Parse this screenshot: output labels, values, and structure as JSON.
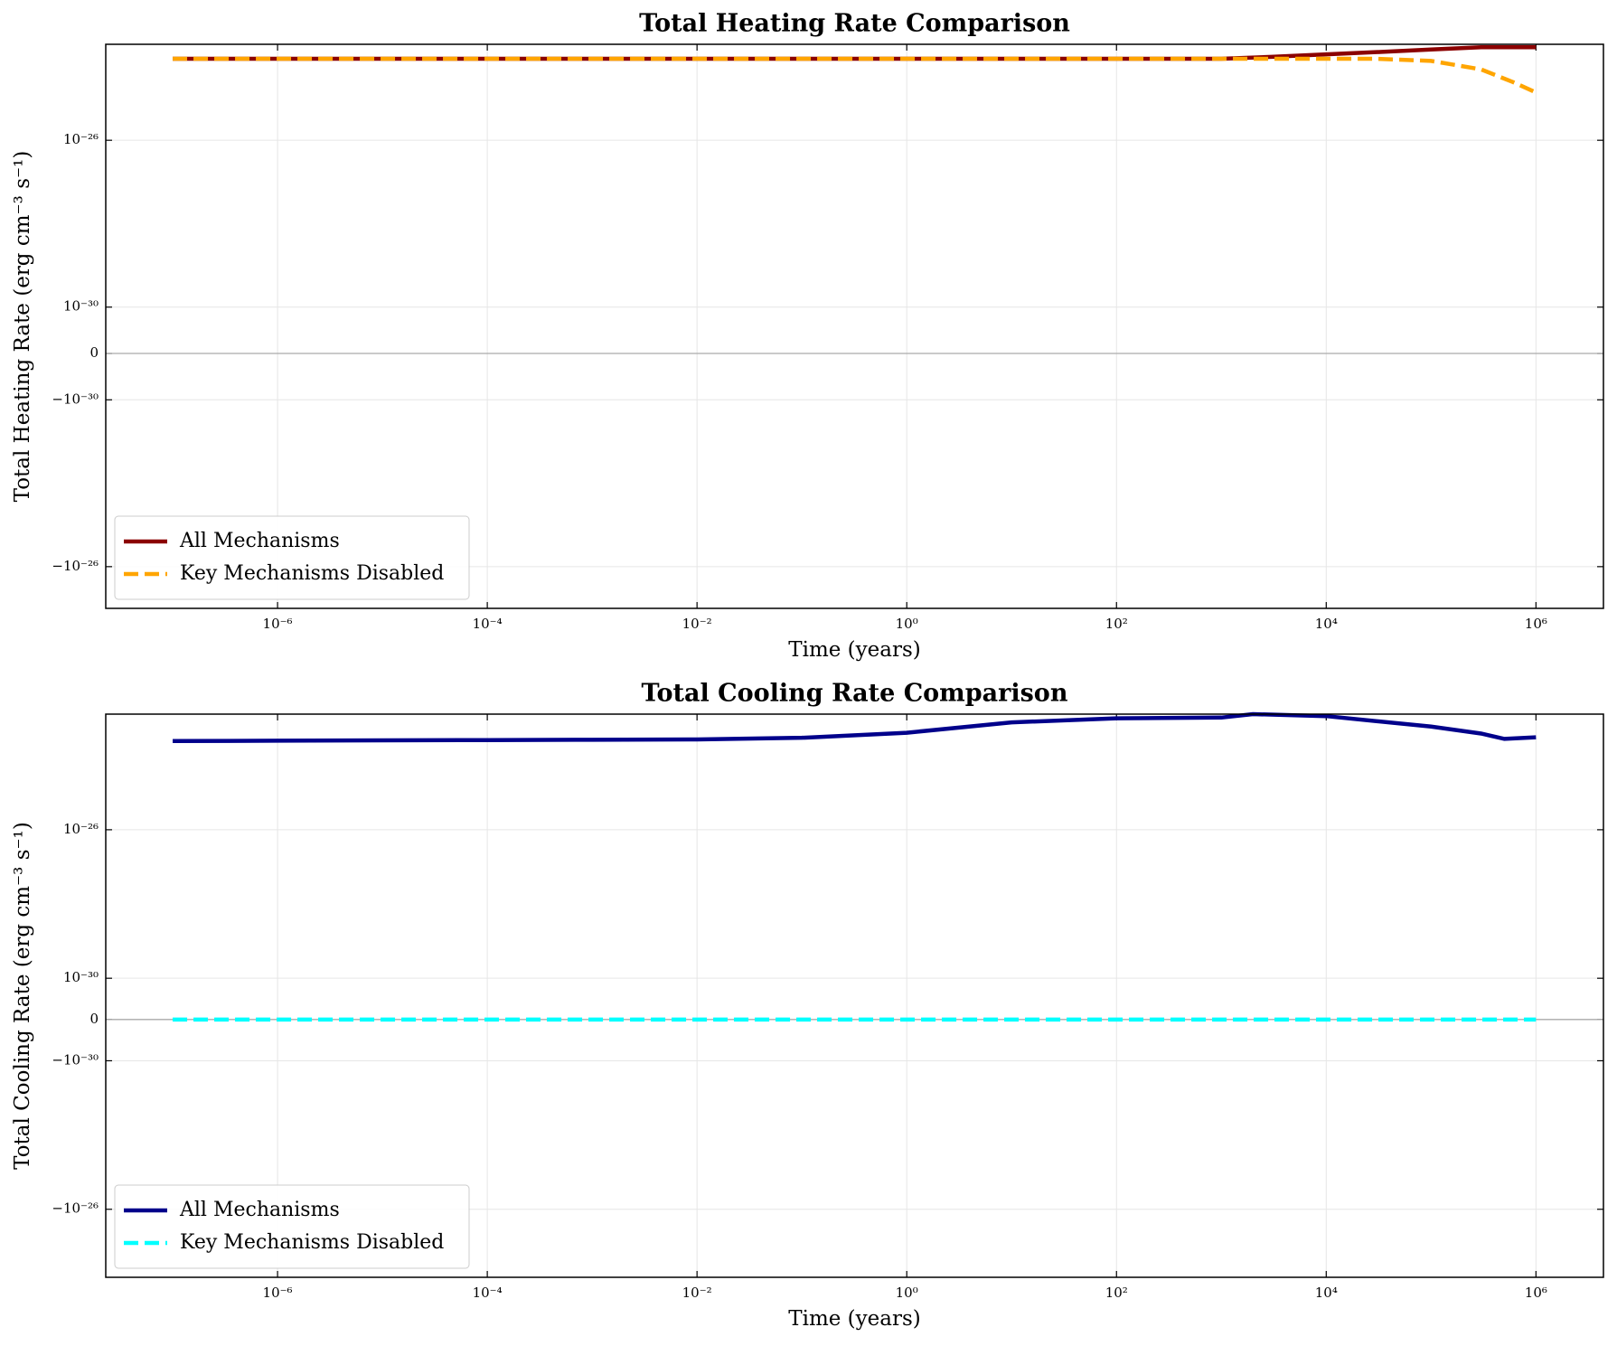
{
  "chart_data": [
    {
      "type": "line",
      "title": "Total Heating Rate Comparison",
      "x_label": "Time (years)",
      "y_label": "Total Heating Rate (erg cm⁻³ s⁻¹)",
      "x": [
        1e-07,
        1e-06,
        1e-05,
        0.0001,
        0.001,
        0.01,
        0.1,
        1,
        10,
        100,
        1000,
        3000,
        10000,
        30000,
        100000,
        300000,
        600000,
        1000000
      ],
      "series": [
        {
          "name": "All Mechanisms",
          "color": "#8b0000",
          "linestyle": "solid",
          "values": [
            9e-25,
            9e-25,
            9e-25,
            9e-25,
            9e-25,
            9e-25,
            9e-25,
            9e-25,
            9e-25,
            9e-25,
            9e-25,
            1e-24,
            1.15e-24,
            1.3e-24,
            1.5e-24,
            1.7e-24,
            1.7e-24,
            1.7e-24
          ]
        },
        {
          "name": "Key Mechanisms Disabled",
          "color": "#ffa500",
          "linestyle": "dashed",
          "values": [
            9e-25,
            9e-25,
            9e-25,
            9e-25,
            9e-25,
            9e-25,
            9e-25,
            9e-25,
            9e-25,
            9e-25,
            9e-25,
            9e-25,
            9e-25,
            9e-25,
            8e-25,
            5e-25,
            2.5e-25,
            1.4e-25
          ]
        }
      ],
      "xscale": "log",
      "yscale": "symlog",
      "linthresh": 1e-30,
      "xlim": [
        2.3e-08,
        4400000.0
      ],
      "xticks": [
        {
          "value": 1e-06,
          "label": "10⁻⁶"
        },
        {
          "value": 0.0001,
          "label": "10⁻⁴"
        },
        {
          "value": 0.01,
          "label": "10⁻²"
        },
        {
          "value": 1,
          "label": "10⁰"
        },
        {
          "value": 100,
          "label": "10²"
        },
        {
          "value": 10000,
          "label": "10⁴"
        },
        {
          "value": 1000000,
          "label": "10⁶"
        }
      ],
      "ylim": [
        -1e-25,
        2e-24
      ],
      "yticks": [
        {
          "value": -1e-26,
          "label": "−10⁻²⁶"
        },
        {
          "value": -1e-30,
          "label": "−10⁻³⁰"
        },
        0,
        {
          "value": 1e-30,
          "label": "10⁻³⁰"
        },
        {
          "value": 1e-26,
          "label": "10⁻²⁶"
        }
      ],
      "grid": true,
      "zero_line": true,
      "legend": "lower left"
    },
    {
      "type": "line",
      "title": "Total Cooling Rate Comparison",
      "x_label": "Time (years)",
      "y_label": "Total Cooling Rate (erg cm⁻³ s⁻¹)",
      "x": [
        1e-07,
        1e-06,
        1e-05,
        0.0001,
        0.001,
        0.01,
        0.1,
        1,
        10,
        100,
        1000,
        2000,
        10000,
        100000,
        300000,
        500000,
        1000000
      ],
      "series": [
        {
          "name": "All Mechanisms",
          "color": "#00008b",
          "linestyle": "solid",
          "values": [
            2.45e-24,
            2.5e-24,
            2.55e-24,
            2.6e-24,
            2.65e-24,
            2.7e-24,
            3e-24,
            4.1e-24,
            7.8e-24,
            1e-23,
            1.05e-23,
            1.3e-23,
            1.15e-23,
            6e-24,
            3.9e-24,
            2.8e-24,
            3.1e-24
          ]
        },
        {
          "name": "Key Mechanisms Disabled",
          "color": "#00ffff",
          "linestyle": "dashed",
          "values": [
            0,
            0,
            0,
            0,
            0,
            0,
            0,
            0,
            0,
            0,
            0,
            0,
            0,
            0,
            0,
            0,
            0
          ]
        }
      ],
      "xscale": "log",
      "yscale": "symlog",
      "linthresh": 1e-30,
      "xlim": [
        2.3e-08,
        4400000.0
      ],
      "xticks": [
        {
          "value": 1e-06,
          "label": "10⁻⁶"
        },
        {
          "value": 0.0001,
          "label": "10⁻⁴"
        },
        {
          "value": 0.01,
          "label": "10⁻²"
        },
        {
          "value": 1,
          "label": "10⁰"
        },
        {
          "value": 100,
          "label": "10²"
        },
        {
          "value": 10000,
          "label": "10⁴"
        },
        {
          "value": 1000000,
          "label": "10⁶"
        }
      ],
      "ylim": [
        -6.8e-25,
        1.3e-23
      ],
      "yticks": [
        {
          "value": -1e-26,
          "label": "−10⁻²⁶"
        },
        {
          "value": -1e-30,
          "label": "−10⁻³⁰"
        },
        0,
        {
          "value": 1e-30,
          "label": "10⁻³⁰"
        },
        {
          "value": 1e-26,
          "label": "10⁻²⁶"
        }
      ],
      "grid": true,
      "zero_line": true,
      "legend": "lower left"
    }
  ]
}
